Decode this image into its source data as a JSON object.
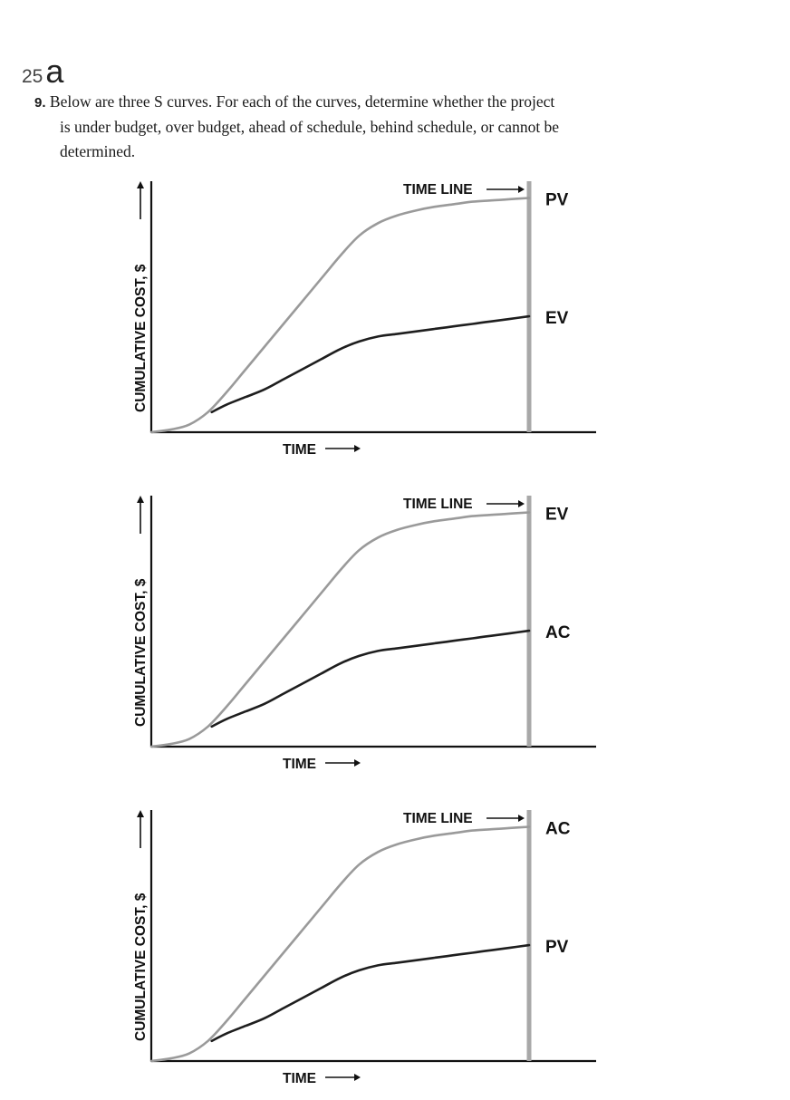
{
  "page": {
    "number": "25",
    "letter": "a"
  },
  "question": {
    "number": "9.",
    "text_line1": "Below are three S curves. For each of the curves, determine whether the project",
    "text_line2": "is under budget, over budget, ahead of schedule, behind schedule, or cannot be",
    "text_line3": "determined."
  },
  "colors": {
    "upper_curve": "#9a9a9a",
    "lower_curve": "#1e1e1e",
    "time_line": "#a8a8a8",
    "axis": "#111111"
  },
  "chart_data": [
    {
      "type": "line",
      "ylabel": "CUMULATIVE COST, $",
      "xlabel": "TIME",
      "time_line_label": "TIME LINE",
      "grid": false,
      "series": [
        {
          "name": "PV",
          "role": "upper",
          "x": [
            0,
            5,
            10,
            15,
            20,
            25,
            30,
            35,
            40,
            45,
            50,
            55,
            60,
            65,
            70,
            75,
            80,
            85,
            90,
            95,
            100
          ],
          "values": [
            0,
            1,
            3,
            8,
            16,
            25,
            34,
            43,
            52,
            61,
            70,
            78,
            83,
            86,
            88,
            89.5,
            90.5,
            91.5,
            92,
            92.5,
            93
          ]
        },
        {
          "name": "EV",
          "role": "lower",
          "x": [
            16,
            20,
            25,
            30,
            35,
            40,
            45,
            50,
            55,
            60,
            65,
            70,
            75,
            80,
            85,
            90,
            95,
            100
          ],
          "values": [
            8,
            11,
            14,
            17,
            21,
            25,
            29,
            33,
            36,
            38,
            39,
            40,
            41,
            42,
            43,
            44,
            45,
            46
          ]
        }
      ]
    },
    {
      "type": "line",
      "ylabel": "CUMULATIVE COST, $",
      "xlabel": "TIME",
      "time_line_label": "TIME LINE",
      "grid": false,
      "series": [
        {
          "name": "EV",
          "role": "upper",
          "x": [
            0,
            5,
            10,
            15,
            20,
            25,
            30,
            35,
            40,
            45,
            50,
            55,
            60,
            65,
            70,
            75,
            80,
            85,
            90,
            95,
            100
          ],
          "values": [
            0,
            1,
            3,
            8,
            16,
            25,
            34,
            43,
            52,
            61,
            70,
            78,
            83,
            86,
            88,
            89.5,
            90.5,
            91.5,
            92,
            92.5,
            93
          ]
        },
        {
          "name": "AC",
          "role": "lower",
          "x": [
            16,
            20,
            25,
            30,
            35,
            40,
            45,
            50,
            55,
            60,
            65,
            70,
            75,
            80,
            85,
            90,
            95,
            100
          ],
          "values": [
            8,
            11,
            14,
            17,
            21,
            25,
            29,
            33,
            36,
            38,
            39,
            40,
            41,
            42,
            43,
            44,
            45,
            46
          ]
        }
      ]
    },
    {
      "type": "line",
      "ylabel": "CUMULATIVE COST, $",
      "xlabel": "TIME",
      "time_line_label": "TIME LINE",
      "grid": false,
      "series": [
        {
          "name": "AC",
          "role": "upper",
          "x": [
            0,
            5,
            10,
            15,
            20,
            25,
            30,
            35,
            40,
            45,
            50,
            55,
            60,
            65,
            70,
            75,
            80,
            85,
            90,
            95,
            100
          ],
          "values": [
            0,
            1,
            3,
            8,
            16,
            25,
            34,
            43,
            52,
            61,
            70,
            78,
            83,
            86,
            88,
            89.5,
            90.5,
            91.5,
            92,
            92.5,
            93
          ]
        },
        {
          "name": "PV",
          "role": "lower",
          "x": [
            16,
            20,
            25,
            30,
            35,
            40,
            45,
            50,
            55,
            60,
            65,
            70,
            75,
            80,
            85,
            90,
            95,
            100
          ],
          "values": [
            8,
            11,
            14,
            17,
            21,
            25,
            29,
            33,
            36,
            38,
            39,
            40,
            41,
            42,
            43,
            44,
            45,
            46
          ]
        }
      ]
    }
  ]
}
